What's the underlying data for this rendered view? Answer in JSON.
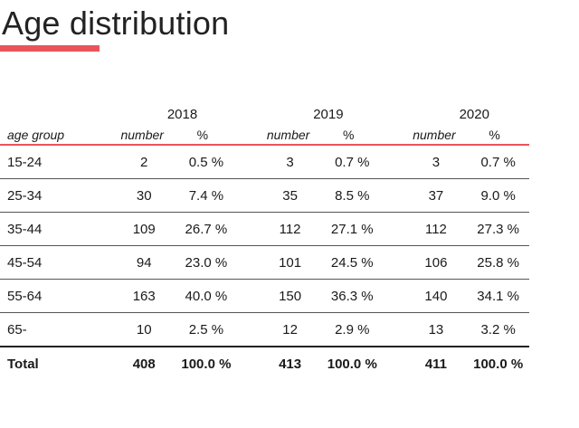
{
  "title": "Age distribution",
  "accent_color": "#e9545a",
  "table": {
    "group_header": "age group",
    "years": [
      {
        "year": "2018",
        "number_label": "number",
        "percent_label": "%"
      },
      {
        "year": "2019",
        "number_label": "number",
        "percent_label": "%"
      },
      {
        "year": "2020",
        "number_label": "number",
        "percent_label": "%"
      }
    ],
    "rows": [
      {
        "group": "15-24",
        "values": [
          {
            "n": "2",
            "p": "0.5 %"
          },
          {
            "n": "3",
            "p": "0.7 %"
          },
          {
            "n": "3",
            "p": "0.7 %"
          }
        ]
      },
      {
        "group": "25-34",
        "values": [
          {
            "n": "30",
            "p": "7.4 %"
          },
          {
            "n": "35",
            "p": "8.5 %"
          },
          {
            "n": "37",
            "p": "9.0 %"
          }
        ]
      },
      {
        "group": "35-44",
        "values": [
          {
            "n": "109",
            "p": "26.7 %"
          },
          {
            "n": "112",
            "p": "27.1 %"
          },
          {
            "n": "112",
            "p": "27.3 %"
          }
        ]
      },
      {
        "group": "45-54",
        "values": [
          {
            "n": "94",
            "p": "23.0 %"
          },
          {
            "n": "101",
            "p": "24.5 %"
          },
          {
            "n": "106",
            "p": "25.8 %"
          }
        ]
      },
      {
        "group": "55-64",
        "values": [
          {
            "n": "163",
            "p": "40.0 %"
          },
          {
            "n": "150",
            "p": "36.3 %"
          },
          {
            "n": "140",
            "p": "34.1 %"
          }
        ]
      },
      {
        "group": "65-",
        "values": [
          {
            "n": "10",
            "p": "2.5 %"
          },
          {
            "n": "12",
            "p": "2.9 %"
          },
          {
            "n": "13",
            "p": "3.2 %"
          }
        ]
      }
    ],
    "total": {
      "group": "Total",
      "values": [
        {
          "n": "408",
          "p": "100.0 %"
        },
        {
          "n": "413",
          "p": "100.0 %"
        },
        {
          "n": "411",
          "p": "100.0 %"
        }
      ]
    }
  }
}
